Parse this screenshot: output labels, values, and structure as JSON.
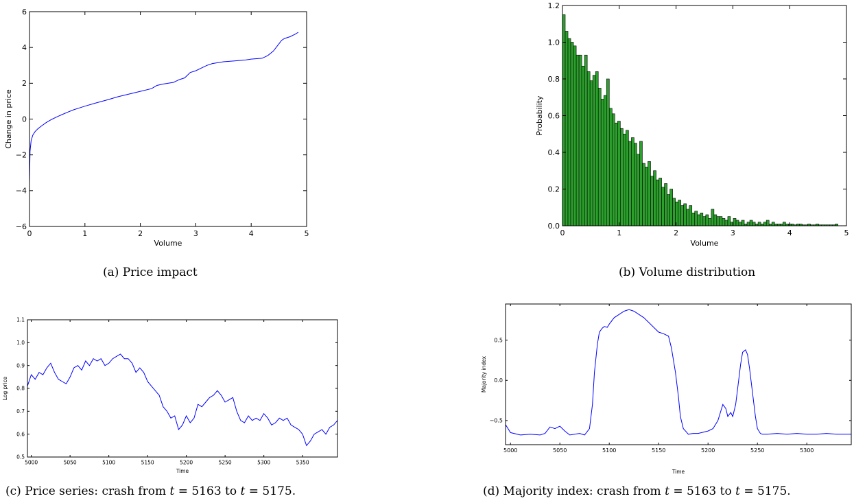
{
  "captions": {
    "a": "(a)  Price impact",
    "b": "(b)  Volume distribution",
    "c_prefix": "(c)  Price series: crash from ",
    "c_t1": "t",
    "c_mid": " = 5163 to ",
    "c_t2": "t",
    "c_suffix": " = 5175.",
    "d_prefix": "(d)  Majority index: crash from ",
    "d_t1": "t",
    "d_mid": " = 5163 to ",
    "d_t2": "t",
    "d_suffix": " = 5175."
  },
  "colors": {
    "line": "#0000ff",
    "bar_fill": "#2ca02c",
    "bar_edge": "#000000"
  },
  "chart_data": [
    {
      "id": "a",
      "type": "line",
      "xlabel": "Volume",
      "ylabel": "Change in price",
      "xlim": [
        0,
        5
      ],
      "ylim": [
        -6,
        6
      ],
      "xticks": [
        "0",
        "1",
        "2",
        "3",
        "4",
        "5"
      ],
      "yticks": [
        "−6",
        "−4",
        "−2",
        "0",
        "2",
        "4",
        "6"
      ],
      "x": [
        0,
        0.01,
        0.03,
        0.06,
        0.1,
        0.15,
        0.2,
        0.3,
        0.4,
        0.5,
        0.6,
        0.7,
        0.8,
        0.9,
        1.0,
        1.2,
        1.4,
        1.6,
        1.8,
        2.0,
        2.2,
        2.3,
        2.4,
        2.6,
        2.7,
        2.8,
        2.9,
        3.0,
        3.1,
        3.2,
        3.3,
        3.5,
        3.7,
        3.9,
        4.0,
        4.2,
        4.3,
        4.4,
        4.5,
        4.55,
        4.6,
        4.7,
        4.8,
        4.85
      ],
      "y": [
        -3.6,
        -1.8,
        -1.2,
        -0.9,
        -0.7,
        -0.55,
        -0.42,
        -0.2,
        -0.02,
        0.13,
        0.27,
        0.4,
        0.52,
        0.62,
        0.72,
        0.9,
        1.07,
        1.25,
        1.4,
        1.55,
        1.7,
        1.88,
        1.95,
        2.05,
        2.2,
        2.3,
        2.6,
        2.7,
        2.85,
        3.0,
        3.1,
        3.2,
        3.25,
        3.3,
        3.35,
        3.4,
        3.55,
        3.8,
        4.2,
        4.4,
        4.5,
        4.6,
        4.75,
        4.85
      ]
    },
    {
      "id": "b",
      "type": "bar",
      "xlabel": "Volume",
      "ylabel": "Probability",
      "xlim": [
        0,
        5
      ],
      "ylim": [
        0,
        1.2
      ],
      "xticks": [
        "0",
        "1",
        "2",
        "3",
        "4",
        "5"
      ],
      "yticks": [
        "0.0",
        "0.2",
        "0.4",
        "0.6",
        "0.8",
        "1.0",
        "1.2"
      ],
      "bin_start": 0,
      "bin_width": 0.0485,
      "values": [
        1.15,
        1.06,
        1.02,
        1.0,
        0.98,
        0.93,
        0.93,
        0.87,
        0.93,
        0.84,
        0.79,
        0.82,
        0.84,
        0.75,
        0.69,
        0.71,
        0.8,
        0.64,
        0.61,
        0.56,
        0.57,
        0.53,
        0.5,
        0.52,
        0.46,
        0.48,
        0.45,
        0.39,
        0.46,
        0.34,
        0.32,
        0.35,
        0.27,
        0.3,
        0.25,
        0.26,
        0.21,
        0.23,
        0.17,
        0.2,
        0.15,
        0.13,
        0.14,
        0.11,
        0.12,
        0.09,
        0.11,
        0.07,
        0.08,
        0.06,
        0.07,
        0.05,
        0.06,
        0.04,
        0.09,
        0.06,
        0.05,
        0.05,
        0.04,
        0.03,
        0.05,
        0.02,
        0.04,
        0.03,
        0.02,
        0.03,
        0.01,
        0.02,
        0.03,
        0.02,
        0.01,
        0.02,
        0.01,
        0.02,
        0.03,
        0.01,
        0.02,
        0.01,
        0.01,
        0.01,
        0.02,
        0.01,
        0.01,
        0.01,
        0.005,
        0.01,
        0.01,
        0.005,
        0.005,
        0.01,
        0.005,
        0.005,
        0.01,
        0.005,
        0.005,
        0.005,
        0.005,
        0.005,
        0.005,
        0.01
      ]
    },
    {
      "id": "c",
      "type": "line",
      "xlabel": "Time",
      "ylabel": "Log price",
      "xlim": [
        4995,
        5395
      ],
      "ylim": [
        0.5,
        1.1
      ],
      "xticks": [
        "5000",
        "5050",
        "5100",
        "5150",
        "5200",
        "5250",
        "5300",
        "5350"
      ],
      "yticks": [
        "0.5",
        "0.6",
        "0.7",
        "0.8",
        "0.9",
        "1.0",
        "1.1"
      ],
      "x": [
        4995,
        5000,
        5005,
        5010,
        5015,
        5020,
        5025,
        5030,
        5035,
        5040,
        5045,
        5050,
        5055,
        5060,
        5065,
        5070,
        5075,
        5080,
        5085,
        5090,
        5095,
        5100,
        5105,
        5110,
        5115,
        5120,
        5125,
        5130,
        5135,
        5140,
        5145,
        5150,
        5155,
        5160,
        5165,
        5170,
        5175,
        5180,
        5185,
        5190,
        5195,
        5200,
        5205,
        5210,
        5215,
        5220,
        5225,
        5230,
        5235,
        5240,
        5245,
        5250,
        5255,
        5260,
        5265,
        5270,
        5275,
        5280,
        5285,
        5290,
        5295,
        5300,
        5305,
        5310,
        5315,
        5320,
        5325,
        5330,
        5335,
        5340,
        5345,
        5350,
        5355,
        5360,
        5365,
        5370,
        5375,
        5380,
        5385,
        5390,
        5395
      ],
      "y": [
        0.81,
        0.86,
        0.84,
        0.87,
        0.86,
        0.89,
        0.91,
        0.87,
        0.84,
        0.83,
        0.82,
        0.85,
        0.89,
        0.9,
        0.88,
        0.92,
        0.9,
        0.93,
        0.92,
        0.93,
        0.9,
        0.91,
        0.93,
        0.94,
        0.95,
        0.93,
        0.93,
        0.91,
        0.87,
        0.89,
        0.87,
        0.83,
        0.81,
        0.79,
        0.77,
        0.72,
        0.7,
        0.67,
        0.68,
        0.62,
        0.64,
        0.68,
        0.65,
        0.67,
        0.73,
        0.72,
        0.74,
        0.76,
        0.77,
        0.79,
        0.77,
        0.74,
        0.75,
        0.76,
        0.7,
        0.66,
        0.65,
        0.68,
        0.66,
        0.67,
        0.66,
        0.69,
        0.67,
        0.64,
        0.65,
        0.67,
        0.66,
        0.67,
        0.64,
        0.63,
        0.62,
        0.6,
        0.55,
        0.57,
        0.6,
        0.61,
        0.62,
        0.6,
        0.63,
        0.64,
        0.66
      ]
    },
    {
      "id": "d",
      "type": "line",
      "xlabel": "Time",
      "ylabel": "Majority index",
      "xlim": [
        4995,
        5345
      ],
      "ylim": [
        -0.8,
        0.95
      ],
      "xticks": [
        "5000",
        "5050",
        "5100",
        "5150",
        "5200",
        "5250",
        "5300"
      ],
      "yticks": [
        "−0.5",
        "0.0",
        "0.5"
      ],
      "x": [
        4995,
        5000,
        5010,
        5020,
        5030,
        5035,
        5040,
        5045,
        5050,
        5055,
        5060,
        5070,
        5075,
        5080,
        5083,
        5085,
        5088,
        5090,
        5093,
        5095,
        5098,
        5100,
        5105,
        5110,
        5115,
        5120,
        5125,
        5130,
        5135,
        5140,
        5145,
        5150,
        5155,
        5160,
        5163,
        5167,
        5170,
        5172,
        5175,
        5178,
        5180,
        5185,
        5190,
        5200,
        5205,
        5210,
        5215,
        5218,
        5220,
        5223,
        5225,
        5228,
        5230,
        5233,
        5235,
        5238,
        5240,
        5242,
        5245,
        5248,
        5250,
        5253,
        5255,
        5260,
        5270,
        5280,
        5290,
        5300,
        5310,
        5320,
        5330,
        5345
      ],
      "y": [
        -0.55,
        -0.65,
        -0.68,
        -0.67,
        -0.68,
        -0.66,
        -0.58,
        -0.6,
        -0.57,
        -0.63,
        -0.68,
        -0.66,
        -0.68,
        -0.6,
        -0.3,
        0.1,
        0.45,
        0.6,
        0.65,
        0.67,
        0.66,
        0.7,
        0.78,
        0.82,
        0.86,
        0.88,
        0.86,
        0.82,
        0.78,
        0.72,
        0.66,
        0.6,
        0.58,
        0.55,
        0.4,
        0.1,
        -0.2,
        -0.45,
        -0.6,
        -0.64,
        -0.67,
        -0.66,
        -0.66,
        -0.63,
        -0.6,
        -0.5,
        -0.3,
        -0.35,
        -0.45,
        -0.4,
        -0.45,
        -0.3,
        -0.1,
        0.2,
        0.35,
        0.38,
        0.32,
        0.15,
        -0.15,
        -0.45,
        -0.6,
        -0.66,
        -0.67,
        -0.67,
        -0.66,
        -0.67,
        -0.66,
        -0.67,
        -0.67,
        -0.66,
        -0.67,
        -0.67
      ]
    }
  ]
}
